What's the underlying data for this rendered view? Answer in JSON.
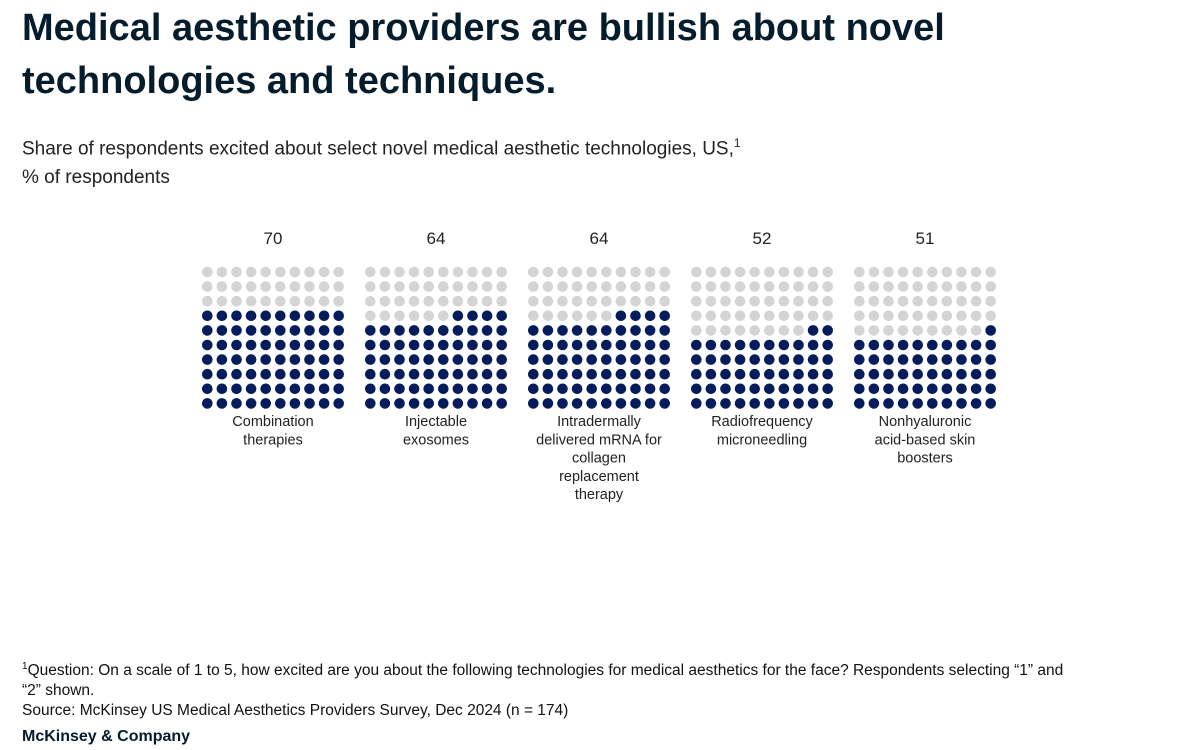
{
  "header": {
    "title": "Medical aesthetic providers are bullish about novel technologies and techniques.",
    "subtitle_line1": "Share of respondents excited about select novel medical aesthetic technologies, US,",
    "subtitle_sup": "1",
    "subtitle_line2": "% of respondents"
  },
  "chart_data": {
    "type": "waffle",
    "title": "",
    "unit": "% of respondents",
    "grid_total": 100,
    "categories": [
      "Combination therapies",
      "Injectable exosomes",
      "Intradermally delivered mRNA for collagen replacement therapy",
      "Radiofrequency microneedling",
      "Nonhyaluronic acid-based skin boosters"
    ],
    "category_lines": [
      [
        "Combination",
        "therapies"
      ],
      [
        "Injectable",
        "exosomes"
      ],
      [
        "Intradermally",
        "delivered mRNA for",
        "collagen",
        "replacement",
        "therapy"
      ],
      [
        "Radiofrequency",
        "microneedling"
      ],
      [
        "Nonhyaluronic",
        "acid-based skin",
        "boosters"
      ]
    ],
    "values": [
      70,
      64,
      64,
      52,
      51
    ],
    "value_labels": [
      "70",
      "64",
      "64",
      "52",
      "51"
    ],
    "colors": {
      "filled": "#051c5c",
      "empty": "#d4d4d4"
    }
  },
  "footnote": {
    "sup": "1",
    "text": "Question: On a scale of 1 to 5, how excited are you about the following technologies for medical aesthetics for the face? Respondents selecting “1” and “2” shown.",
    "source": "Source: McKinsey US Medical Aesthetics Providers Survey, Dec 2024 (n = 174)"
  },
  "brand": "McKinsey & Company"
}
